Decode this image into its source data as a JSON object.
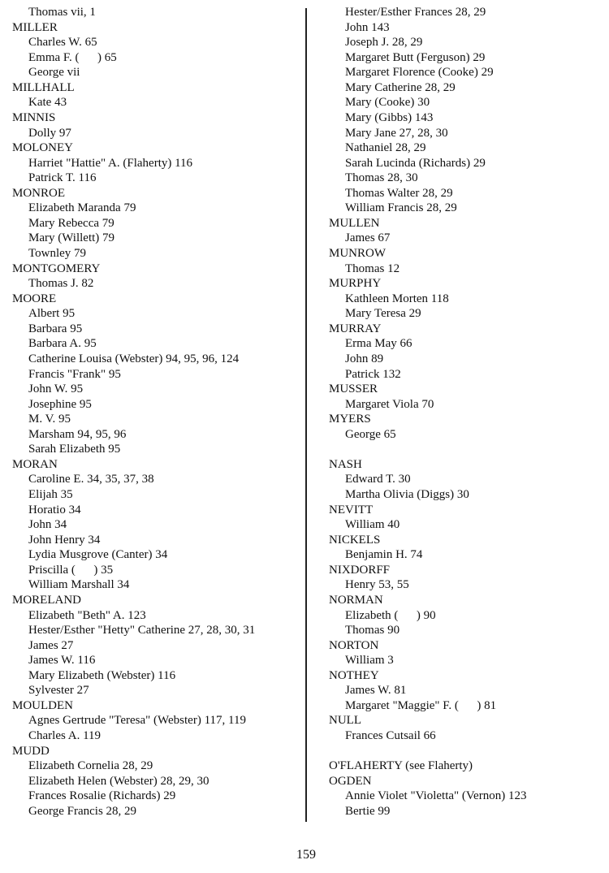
{
  "page_number": "159",
  "columns": [
    [
      {
        "type": "entry",
        "text": "Thomas vii, 1"
      },
      {
        "type": "heading",
        "text": "MILLER"
      },
      {
        "type": "entry",
        "text": "Charles W. 65"
      },
      {
        "type": "entry",
        "text": "Emma F. (      ) 65"
      },
      {
        "type": "entry",
        "text": "George vii"
      },
      {
        "type": "heading",
        "text": "MILLHALL"
      },
      {
        "type": "entry",
        "text": "Kate 43"
      },
      {
        "type": "heading",
        "text": "MINNIS"
      },
      {
        "type": "entry",
        "text": "Dolly 97"
      },
      {
        "type": "heading",
        "text": "MOLONEY"
      },
      {
        "type": "entry",
        "text": "Harriet \"Hattie\" A. (Flaherty) 116"
      },
      {
        "type": "entry",
        "text": "Patrick T. 116"
      },
      {
        "type": "heading",
        "text": "MONROE"
      },
      {
        "type": "entry",
        "text": "Elizabeth Maranda 79"
      },
      {
        "type": "entry",
        "text": "Mary Rebecca 79"
      },
      {
        "type": "entry",
        "text": "Mary (Willett) 79"
      },
      {
        "type": "entry",
        "text": "Townley 79"
      },
      {
        "type": "heading",
        "text": "MONTGOMERY"
      },
      {
        "type": "entry",
        "text": "Thomas J. 82"
      },
      {
        "type": "heading",
        "text": "MOORE"
      },
      {
        "type": "entry",
        "text": "Albert 95"
      },
      {
        "type": "entry",
        "text": "Barbara 95"
      },
      {
        "type": "entry",
        "text": "Barbara A. 95"
      },
      {
        "type": "entry",
        "text": "Catherine Louisa (Webster) 94, 95, 96, 124"
      },
      {
        "type": "entry",
        "text": "Francis \"Frank\" 95"
      },
      {
        "type": "entry",
        "text": "John W. 95"
      },
      {
        "type": "entry",
        "text": "Josephine 95"
      },
      {
        "type": "entry",
        "text": "M. V. 95"
      },
      {
        "type": "entry",
        "text": "Marsham 94, 95, 96"
      },
      {
        "type": "entry",
        "text": "Sarah Elizabeth 95"
      },
      {
        "type": "heading",
        "text": "MORAN"
      },
      {
        "type": "entry",
        "text": "Caroline E. 34, 35, 37, 38"
      },
      {
        "type": "entry",
        "text": "Elijah 35"
      },
      {
        "type": "entry",
        "text": "Horatio 34"
      },
      {
        "type": "entry",
        "text": "John 34"
      },
      {
        "type": "entry",
        "text": "John Henry 34"
      },
      {
        "type": "entry",
        "text": "Lydia Musgrove (Canter) 34"
      },
      {
        "type": "entry",
        "text": "Priscilla (      ) 35"
      },
      {
        "type": "entry",
        "text": "William Marshall 34"
      },
      {
        "type": "heading",
        "text": "MORELAND"
      },
      {
        "type": "entry",
        "text": "Elizabeth \"Beth\" A. 123"
      },
      {
        "type": "entry",
        "text": "Hester/Esther \"Hetty\" Catherine 27, 28, 30, 31"
      },
      {
        "type": "entry",
        "text": "James 27"
      },
      {
        "type": "entry",
        "text": "James W. 116"
      },
      {
        "type": "entry",
        "text": "Mary Elizabeth (Webster) 116"
      },
      {
        "type": "entry",
        "text": "Sylvester 27"
      },
      {
        "type": "heading",
        "text": "MOULDEN"
      },
      {
        "type": "entry",
        "text": "Agnes Gertrude \"Teresa\" (Webster) 117, 119"
      },
      {
        "type": "entry",
        "text": "Charles A. 119"
      },
      {
        "type": "heading",
        "text": "MUDD"
      },
      {
        "type": "entry",
        "text": "Elizabeth Cornelia 28, 29"
      },
      {
        "type": "entry",
        "text": "Elizabeth Helen (Webster) 28, 29, 30"
      },
      {
        "type": "entry",
        "text": "Frances Rosalie (Richards) 29"
      },
      {
        "type": "entry",
        "text": "George Francis 28, 29"
      }
    ],
    [
      {
        "type": "entry",
        "text": "Hester/Esther Frances 28, 29"
      },
      {
        "type": "entry",
        "text": "John 143"
      },
      {
        "type": "entry",
        "text": "Joseph J. 28, 29"
      },
      {
        "type": "entry",
        "text": "Margaret Butt (Ferguson) 29"
      },
      {
        "type": "entry",
        "text": "Margaret Florence (Cooke) 29"
      },
      {
        "type": "entry",
        "text": "Mary Catherine 28, 29"
      },
      {
        "type": "entry",
        "text": "Mary (Cooke) 30"
      },
      {
        "type": "entry",
        "text": "Mary (Gibbs) 143"
      },
      {
        "type": "entry",
        "text": "Mary Jane 27, 28, 30"
      },
      {
        "type": "entry",
        "text": "Nathaniel 28, 29"
      },
      {
        "type": "entry",
        "text": "Sarah Lucinda (Richards) 29"
      },
      {
        "type": "entry",
        "text": "Thomas 28, 30"
      },
      {
        "type": "entry",
        "text": "Thomas Walter 28, 29"
      },
      {
        "type": "entry",
        "text": "William Francis 28, 29"
      },
      {
        "type": "heading",
        "text": "MULLEN"
      },
      {
        "type": "entry",
        "text": "James 67"
      },
      {
        "type": "heading",
        "text": "MUNROW"
      },
      {
        "type": "entry",
        "text": "Thomas 12"
      },
      {
        "type": "heading",
        "text": "MURPHY"
      },
      {
        "type": "entry",
        "text": "Kathleen Morten 118"
      },
      {
        "type": "entry",
        "text": "Mary Teresa 29"
      },
      {
        "type": "heading",
        "text": "MURRAY"
      },
      {
        "type": "entry",
        "text": "Erma May 66"
      },
      {
        "type": "entry",
        "text": "John 89"
      },
      {
        "type": "entry",
        "text": "Patrick 132"
      },
      {
        "type": "heading",
        "text": "MUSSER"
      },
      {
        "type": "entry",
        "text": "Margaret Viola 70"
      },
      {
        "type": "heading",
        "text": "MYERS"
      },
      {
        "type": "entry",
        "text": "George 65"
      },
      {
        "type": "blank",
        "text": ""
      },
      {
        "type": "heading",
        "text": "NASH"
      },
      {
        "type": "entry",
        "text": "Edward T. 30"
      },
      {
        "type": "entry",
        "text": "Martha Olivia (Diggs) 30"
      },
      {
        "type": "heading",
        "text": "NEVITT"
      },
      {
        "type": "entry",
        "text": "William 40"
      },
      {
        "type": "heading",
        "text": "NICKELS"
      },
      {
        "type": "entry",
        "text": "Benjamin H. 74"
      },
      {
        "type": "heading",
        "text": "NIXDORFF"
      },
      {
        "type": "entry",
        "text": "Henry 53, 55"
      },
      {
        "type": "heading",
        "text": "NORMAN"
      },
      {
        "type": "entry",
        "text": "Elizabeth (      ) 90"
      },
      {
        "type": "entry",
        "text": "Thomas 90"
      },
      {
        "type": "heading",
        "text": "NORTON"
      },
      {
        "type": "entry",
        "text": "William 3"
      },
      {
        "type": "heading",
        "text": "NOTHEY"
      },
      {
        "type": "entry",
        "text": "James W. 81"
      },
      {
        "type": "entry",
        "text": "Margaret \"Maggie\" F. (      ) 81"
      },
      {
        "type": "heading",
        "text": "NULL"
      },
      {
        "type": "entry",
        "text": "Frances Cutsail 66"
      },
      {
        "type": "blank",
        "text": ""
      },
      {
        "type": "heading",
        "text": "O'FLAHERTY (see Flaherty)"
      },
      {
        "type": "heading",
        "text": "OGDEN"
      },
      {
        "type": "entry",
        "text": "Annie Violet \"Violetta\" (Vernon) 123"
      },
      {
        "type": "entry",
        "text": "Bertie 99"
      }
    ]
  ]
}
